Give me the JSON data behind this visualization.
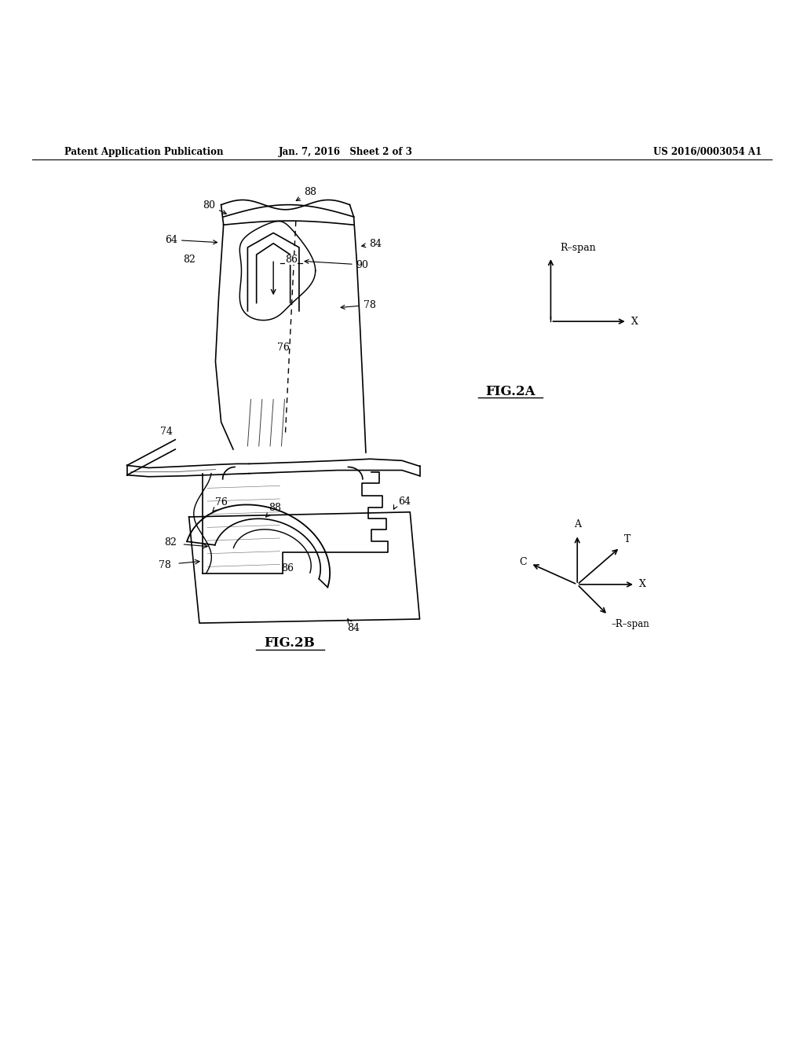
{
  "header_left": "Patent Application Publication",
  "header_center": "Jan. 7, 2016   Sheet 2 of 3",
  "header_right": "US 2016/0003054 A1",
  "background_color": "#ffffff",
  "line_color": "#000000",
  "fig2a_label": "FIG.2A",
  "fig2b_label": "FIG.2B"
}
